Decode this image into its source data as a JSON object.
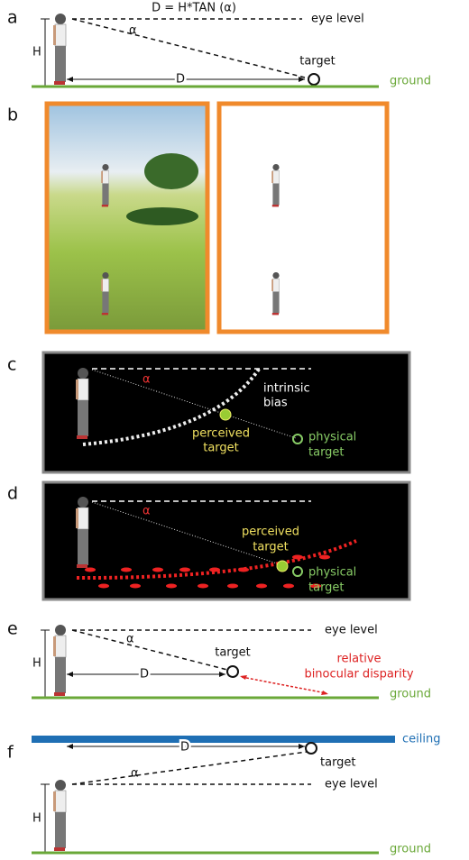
{
  "panels": [
    {
      "label": "a",
      "formula": "D = H*TAN (α)",
      "eye_level": "eye level",
      "alpha": "α",
      "height": "H",
      "distance": "D",
      "target": "target",
      "ground": "ground"
    },
    {
      "label": "b"
    },
    {
      "label": "c",
      "alpha": "α",
      "intrinsic_bias": [
        "intrinsic",
        "bias"
      ],
      "perceived_target": [
        "perceived",
        "target"
      ],
      "physical_target": [
        "physical",
        "target"
      ]
    },
    {
      "label": "d",
      "alpha": "α",
      "perceived_target": [
        "perceived",
        "target"
      ],
      "physical_target": [
        "physical",
        "target"
      ]
    },
    {
      "label": "e",
      "eye_level": "eye level",
      "alpha": "α",
      "height": "H",
      "distance": "D",
      "target": "target",
      "disparity": [
        "relative",
        "binocular disparity"
      ],
      "ground": "ground"
    },
    {
      "label": "f",
      "ceiling": "ceiling",
      "distance": "D",
      "target": "target",
      "alpha": "α",
      "eye_level": "eye level",
      "height": "H",
      "ground": "ground"
    }
  ]
}
